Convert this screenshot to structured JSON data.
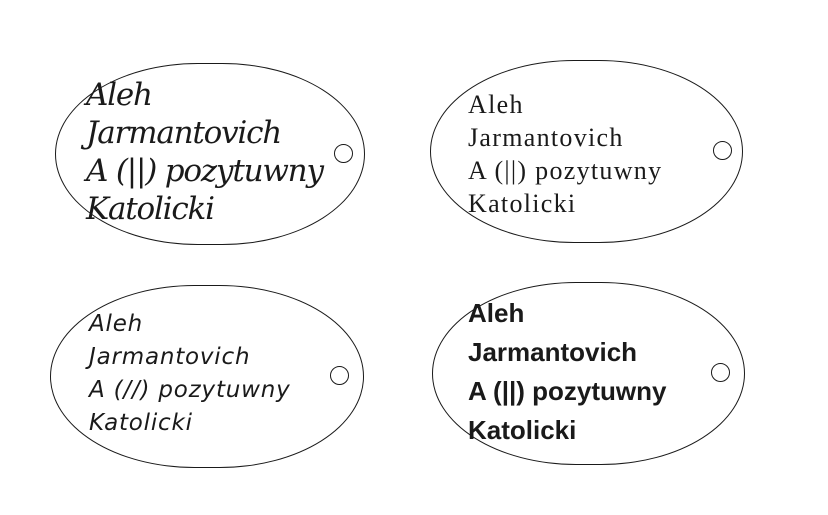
{
  "tags": [
    {
      "lines": [
        "Aleh",
        "Jarmantovich",
        "A (||) pozytuwny",
        "Katolicki"
      ]
    },
    {
      "lines": [
        "Aleh",
        "Jarmantovich",
        "A (||) pozytuwny",
        "Katolicki"
      ]
    },
    {
      "lines": [
        "Aleh",
        "Jarmantovich",
        "A (//) pozytuwny",
        "Katolicki"
      ]
    },
    {
      "lines": [
        "Aleh",
        "Jarmantovich",
        "A (||) pozytuwny",
        "Katolicki"
      ]
    }
  ],
  "colors": {
    "outline": "#1a1a1a",
    "background": "#ffffff"
  }
}
